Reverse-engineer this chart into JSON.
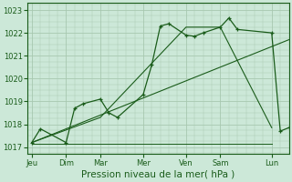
{
  "bg_color": "#cce8d8",
  "line_color": "#1a5c1a",
  "grid_color": "#a8c8b0",
  "xlabel": "Pression niveau de la mer( hPa )",
  "xlabel_fontsize": 7.5,
  "ylim": [
    1016.7,
    1023.3
  ],
  "yticks": [
    1017,
    1018,
    1019,
    1020,
    1021,
    1022,
    1023
  ],
  "x_day_labels": [
    "Jeu",
    "Dim",
    "Mar",
    "Mer",
    "Ven",
    "Sam",
    "Lun"
  ],
  "x_day_positions": [
    0,
    4,
    8,
    13,
    18,
    22,
    28
  ],
  "xlim": [
    -0.5,
    30
  ],
  "series1_x": [
    0,
    1,
    4,
    5,
    6,
    8,
    9,
    10,
    13,
    14,
    15,
    16,
    18,
    19,
    20,
    22,
    23,
    24,
    28,
    29,
    30
  ],
  "series1_y": [
    1017.2,
    1017.8,
    1017.2,
    1018.7,
    1018.9,
    1019.1,
    1018.5,
    1018.3,
    1019.3,
    1020.6,
    1022.3,
    1022.4,
    1021.9,
    1021.85,
    1022.0,
    1022.25,
    1022.65,
    1022.15,
    1022.0,
    1017.7,
    1017.85
  ],
  "trend1_x": [
    0,
    30
  ],
  "trend1_y": [
    1017.2,
    1021.7
  ],
  "trend2_x": [
    0,
    8,
    18,
    22,
    28
  ],
  "trend2_y": [
    1017.2,
    1018.3,
    1022.25,
    1022.25,
    1017.85
  ],
  "flat_line_x": [
    0,
    28
  ],
  "flat_line_y": [
    1017.15,
    1017.15
  ]
}
